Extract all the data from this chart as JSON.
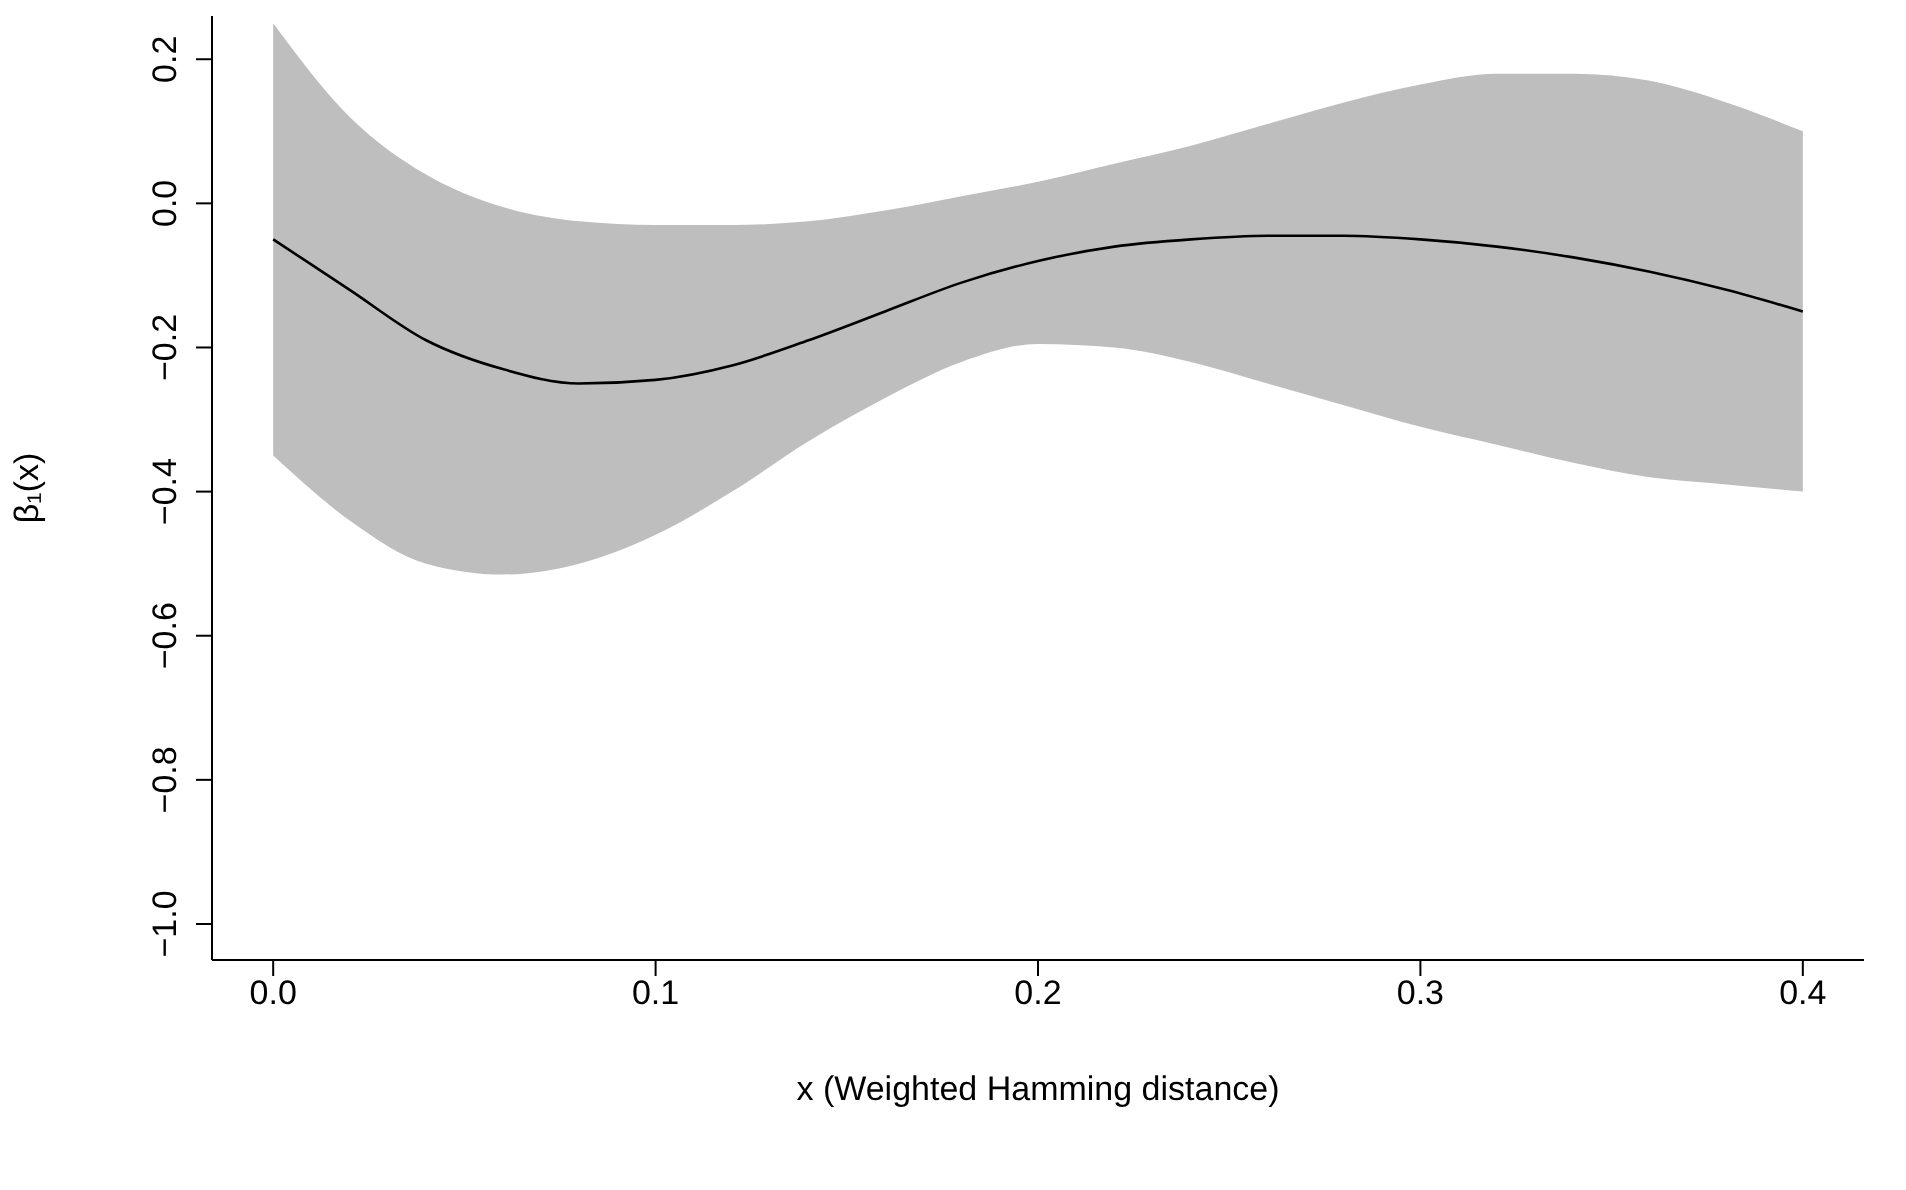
{
  "chart_data": {
    "type": "line",
    "xlabel": "x (Weighted Hamming distance)",
    "ylabel": "β₁(x)",
    "x": [
      0,
      0.02,
      0.04,
      0.06,
      0.08,
      0.1,
      0.12,
      0.14,
      0.16,
      0.18,
      0.2,
      0.22,
      0.24,
      0.26,
      0.28,
      0.3,
      0.32,
      0.34,
      0.36,
      0.38,
      0.4
    ],
    "series": [
      {
        "color": "#000000",
        "values": [
          -0.05,
          -0.12,
          -0.19,
          -0.23,
          -0.25,
          -0.245,
          -0.225,
          -0.19,
          -0.15,
          -0.11,
          -0.08,
          -0.06,
          -0.05,
          -0.045,
          -0.045,
          -0.05,
          -0.06,
          -0.075,
          -0.095,
          -0.12,
          -0.15
        ],
        "lower": [
          -0.35,
          -0.44,
          -0.5,
          -0.515,
          -0.5,
          -0.46,
          -0.4,
          -0.33,
          -0.27,
          -0.22,
          -0.195,
          -0.2,
          -0.22,
          -0.25,
          -0.28,
          -0.31,
          -0.335,
          -0.36,
          -0.38,
          -0.39,
          -0.4
        ],
        "upper": [
          0.25,
          0.12,
          0.04,
          -0.005,
          -0.025,
          -0.03,
          -0.03,
          -0.025,
          -0.01,
          0.01,
          0.03,
          0.055,
          0.08,
          0.11,
          0.14,
          0.165,
          0.18,
          0.18,
          0.17,
          0.14,
          0.1
        ]
      }
    ],
    "xlim": [
      -0.016,
      0.416
    ],
    "ylim": [
      -1.05,
      0.26
    ],
    "xticks": [
      {
        "value": 0,
        "label": "0.0"
      },
      {
        "value": 0.1,
        "label": "0.1"
      },
      {
        "value": 0.2,
        "label": "0.2"
      },
      {
        "value": 0.3,
        "label": "0.3"
      },
      {
        "value": 0.4,
        "label": "0.4"
      }
    ],
    "yticks": [
      {
        "value": -1,
        "label": "−1.0"
      },
      {
        "value": -0.8,
        "label": "−0.8"
      },
      {
        "value": -0.6,
        "label": "−0.6"
      },
      {
        "value": -0.4,
        "label": "−0.4"
      },
      {
        "value": -0.2,
        "label": "−0.2"
      },
      {
        "value": 0,
        "label": "0.0"
      },
      {
        "value": 0.2,
        "label": "0.2"
      }
    ],
    "marker": "none",
    "line_style": "solid"
  }
}
